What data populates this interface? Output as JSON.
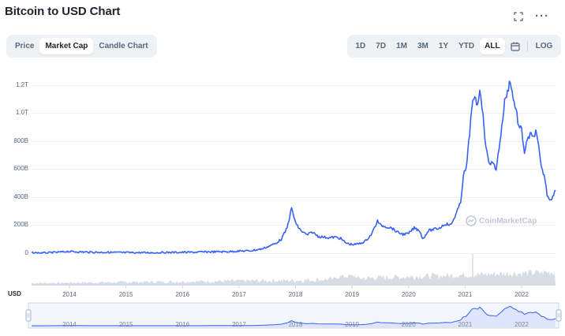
{
  "header": {
    "title": "Bitcoin to USD Chart",
    "fullscreen_icon": "expand-corners-icon",
    "more_icon": "ellipsis-icon",
    "more_glyph": "···"
  },
  "chart_type_tabs": [
    {
      "label": "Price",
      "active": false
    },
    {
      "label": "Market Cap",
      "active": true
    },
    {
      "label": "Candle Chart",
      "active": false
    }
  ],
  "range_tabs": [
    {
      "label": "1D",
      "active": false
    },
    {
      "label": "7D",
      "active": false
    },
    {
      "label": "1M",
      "active": false
    },
    {
      "label": "3M",
      "active": false
    },
    {
      "label": "1Y",
      "active": false
    },
    {
      "label": "YTD",
      "active": false
    },
    {
      "label": "ALL",
      "active": true
    }
  ],
  "calendar_icon": "calendar-icon",
  "log_label": "LOG",
  "watermark": "CoinMarketCap",
  "usd_label": "USD",
  "colors": {
    "line": "#3861fb",
    "volume": "#d8dce3",
    "navigator_fill": "#dfe5fd",
    "grid": "#eef0f3"
  },
  "chart_data": {
    "type": "line",
    "title": "Bitcoin to USD Chart",
    "ylabel": "",
    "xlabel": "",
    "y_ticks": [
      "1.2T",
      "1.0T",
      "800B",
      "600B",
      "400B",
      "200B",
      "0"
    ],
    "x_ticks": [
      "2014",
      "2015",
      "2016",
      "2017",
      "2018",
      "2019",
      "2020",
      "2021",
      "2022"
    ],
    "ylim": [
      0,
      1300000000000
    ],
    "xlim": [
      2013.33,
      2022.6
    ],
    "series": [
      {
        "name": "",
        "x": [
          2013.33,
          2013.6,
          2013.9,
          2013.95,
          2014.1,
          2014.4,
          2014.7,
          2015.0,
          2015.3,
          2015.6,
          2015.9,
          2016.2,
          2016.5,
          2016.8,
          2017.0,
          2017.2,
          2017.4,
          2017.5,
          2017.65,
          2017.75,
          2017.85,
          2017.93,
          2017.97,
          2018.02,
          2018.1,
          2018.2,
          2018.3,
          2018.4,
          2018.5,
          2018.6,
          2018.7,
          2018.8,
          2018.88,
          2018.95,
          2019.05,
          2019.15,
          2019.25,
          2019.35,
          2019.45,
          2019.5,
          2019.6,
          2019.7,
          2019.8,
          2019.9,
          2020.0,
          2020.1,
          2020.2,
          2020.25,
          2020.35,
          2020.45,
          2020.55,
          2020.65,
          2020.75,
          2020.85,
          2020.92,
          2020.97,
          2021.02,
          2021.08,
          2021.12,
          2021.17,
          2021.22,
          2021.26,
          2021.3,
          2021.35,
          2021.4,
          2021.45,
          2021.5,
          2021.55,
          2021.6,
          2021.65,
          2021.7,
          2021.75,
          2021.8,
          2021.85,
          2021.9,
          2021.95,
          2022.0,
          2022.05,
          2022.1,
          2022.15,
          2022.2,
          2022.25,
          2022.3,
          2022.35,
          2022.4,
          2022.45,
          2022.5,
          2022.55,
          2022.6
        ],
        "values": [
          1500000000.0,
          2000000000.0,
          9000000000.0,
          13000000000.0,
          10000000000.0,
          7000000000.0,
          6000000000.0,
          4000000000.0,
          3500000000.0,
          4000000000.0,
          6000000000.0,
          6500000000.0,
          10000000000.0,
          11000000000.0,
          15000000000.0,
          17000000000.0,
          30000000000.0,
          45000000000.0,
          70000000000.0,
          100000000000.0,
          180000000000.0,
          320000000000.0,
          260000000000.0,
          200000000000.0,
          160000000000.0,
          130000000000.0,
          150000000000.0,
          120000000000.0,
          115000000000.0,
          110000000000.0,
          115000000000.0,
          105000000000.0,
          75000000000.0,
          65000000000.0,
          62000000000.0,
          70000000000.0,
          90000000000.0,
          140000000000.0,
          230000000000.0,
          200000000000.0,
          190000000000.0,
          180000000000.0,
          150000000000.0,
          135000000000.0,
          140000000000.0,
          180000000000.0,
          160000000000.0,
          100000000000.0,
          160000000000.0,
          170000000000.0,
          180000000000.0,
          210000000000.0,
          200000000000.0,
          290000000000.0,
          360000000000.0,
          560000000000.0,
          600000000000.0,
          850000000000.0,
          1060000000000.0,
          1100000000000.0,
          1050000000000.0,
          1180000000000.0,
          1050000000000.0,
          830000000000.0,
          680000000000.0,
          640000000000.0,
          640000000000.0,
          600000000000.0,
          750000000000.0,
          900000000000.0,
          1080000000000.0,
          1150000000000.0,
          1240000000000.0,
          1100000000000.0,
          1030000000000.0,
          900000000000.0,
          880000000000.0,
          720000000000.0,
          800000000000.0,
          850000000000.0,
          820000000000.0,
          870000000000.0,
          760000000000.0,
          600000000000.0,
          560000000000.0,
          420000000000.0,
          385000000000.0,
          400000000000.0,
          450000000000.0
        ]
      }
    ],
    "grid": true,
    "legend": "none"
  }
}
